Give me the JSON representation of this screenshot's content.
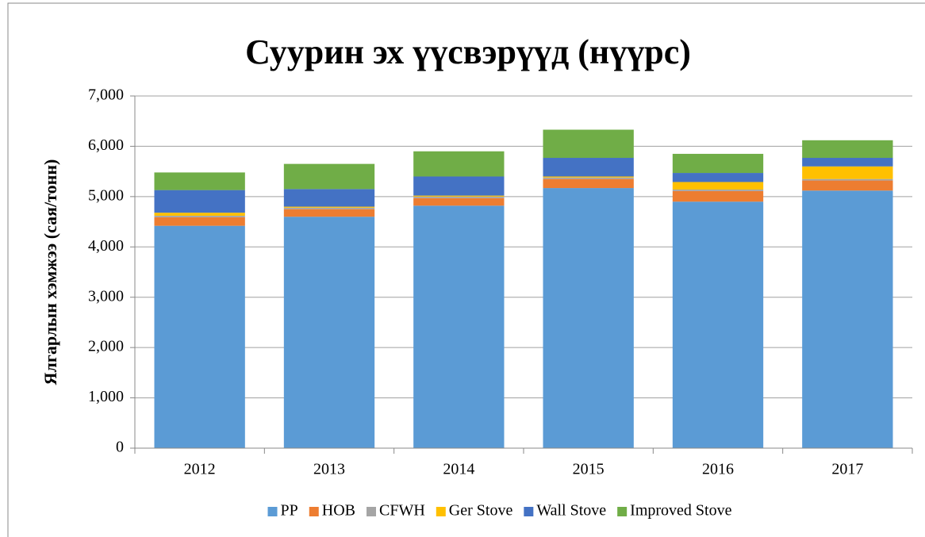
{
  "chart_data": {
    "type": "stacked_bar",
    "title": "Суурин эх үүсвэрүүд (нүүрс)",
    "y_label": "Ялгарлын хэмжээ (сая/тонн)",
    "categories": [
      "2012",
      "2013",
      "2014",
      "2015",
      "2016",
      "2017"
    ],
    "series": [
      {
        "name": "PP",
        "color": "#5b9bd5",
        "values": [
          4420,
          4600,
          4820,
          5170,
          4900,
          5120
        ]
      },
      {
        "name": "HOB",
        "color": "#ed7d31",
        "values": [
          170,
          150,
          150,
          180,
          210,
          200
        ]
      },
      {
        "name": "CFWH",
        "color": "#a5a5a5",
        "values": [
          30,
          30,
          30,
          30,
          30,
          30
        ]
      },
      {
        "name": "Ger Stove",
        "color": "#ffc000",
        "values": [
          60,
          20,
          20,
          20,
          150,
          250
        ]
      },
      {
        "name": "Wall Stove",
        "color": "#4472c4",
        "values": [
          450,
          350,
          380,
          370,
          180,
          170
        ]
      },
      {
        "name": "Improved Stove",
        "color": "#70ad47",
        "values": [
          350,
          500,
          500,
          560,
          380,
          350
        ]
      }
    ],
    "ylim": [
      0,
      7000
    ],
    "yticks": [
      0,
      {
        "value": 1000,
        "label": "1,000"
      },
      {
        "value": 2000,
        "label": "2,000"
      },
      {
        "value": 3000,
        "label": "3,000"
      },
      {
        "value": 4000,
        "label": "4,000"
      },
      {
        "value": 5000,
        "label": "5,000"
      },
      {
        "value": 6000,
        "label": "6,000"
      },
      {
        "value": 7000,
        "label": "7,000"
      }
    ],
    "grid": true,
    "legend": "bottom"
  }
}
